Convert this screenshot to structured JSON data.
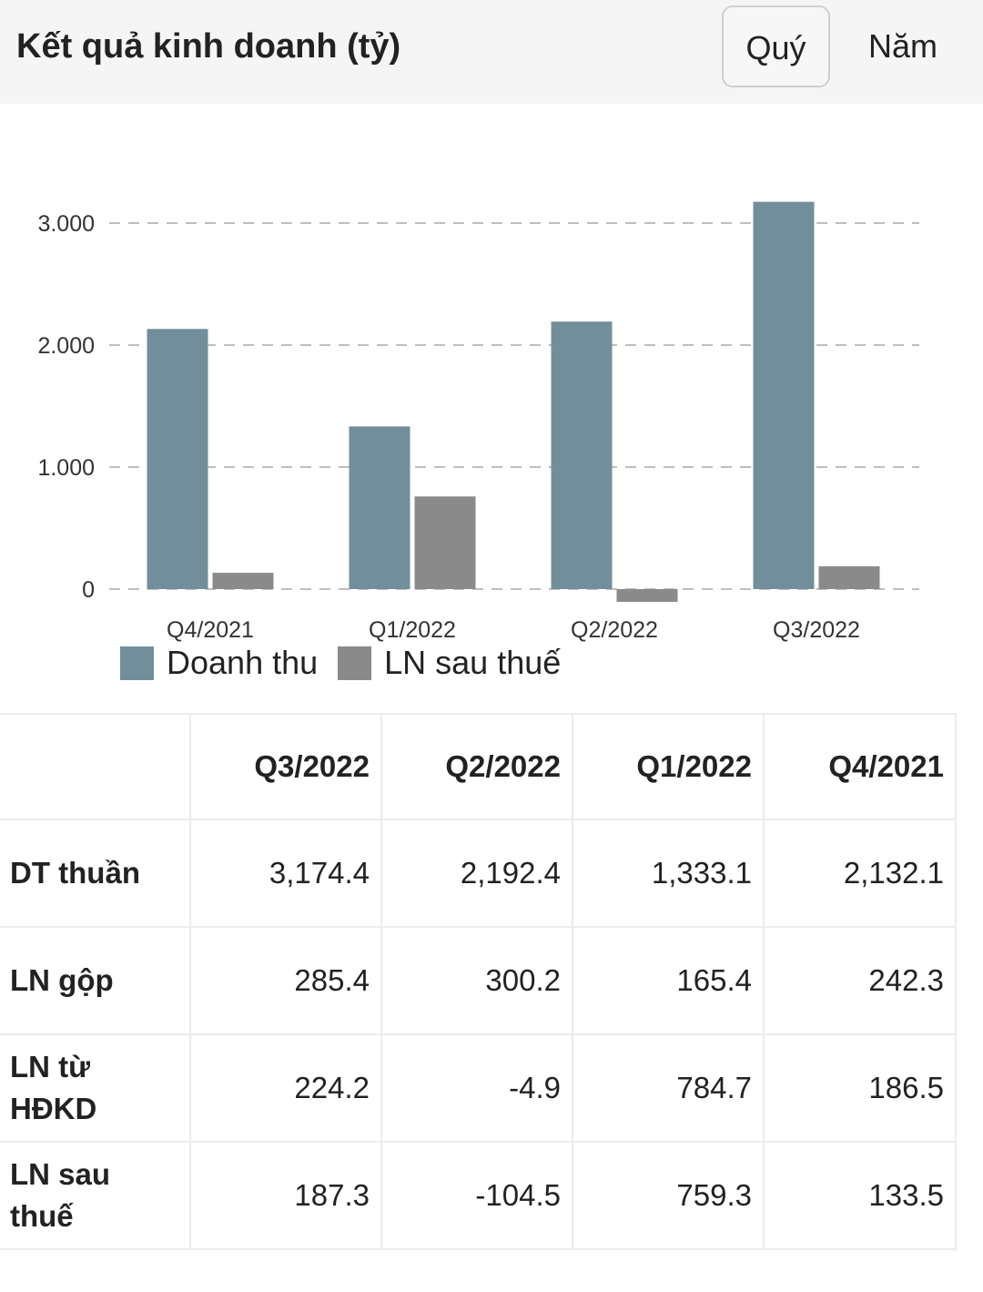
{
  "header": {
    "title": "Kết quả kinh doanh (tỷ)",
    "tabs": [
      {
        "label": "Quý",
        "selected": true
      },
      {
        "label": "Năm",
        "selected": false
      }
    ]
  },
  "chart_data": {
    "type": "bar",
    "categories": [
      "Q4/2021",
      "Q1/2022",
      "Q2/2022",
      "Q3/2022"
    ],
    "series": [
      {
        "name": "Doanh thu",
        "color": "#738e9b",
        "values": [
          2132.1,
          1333.1,
          2192.4,
          3174.4
        ]
      },
      {
        "name": "LN sau thuế",
        "color": "#8a8a8a",
        "values": [
          133.5,
          759.3,
          -104.5,
          187.3
        ]
      }
    ],
    "yticks": [
      "0",
      "1.000",
      "2.000",
      "3.000"
    ],
    "ytick_values": [
      0,
      1000,
      2000,
      3000
    ],
    "ylim": [
      -150,
      3500
    ],
    "grid": true,
    "legend": "bottom-left"
  },
  "table": {
    "columns": [
      "Q3/2022",
      "Q2/2022",
      "Q1/2022",
      "Q4/2021"
    ],
    "rows": [
      {
        "label": "DT thuần",
        "values": [
          "3,174.4",
          "2,192.4",
          "1,333.1",
          "2,132.1"
        ]
      },
      {
        "label": "LN gộp",
        "values": [
          "285.4",
          "300.2",
          "165.4",
          "242.3"
        ]
      },
      {
        "label": "LN từ HĐKD",
        "values": [
          "224.2",
          "-4.9",
          "784.7",
          "186.5"
        ]
      },
      {
        "label": "LN sau thuế",
        "values": [
          "187.3",
          "-104.5",
          "759.3",
          "133.5"
        ]
      }
    ]
  }
}
